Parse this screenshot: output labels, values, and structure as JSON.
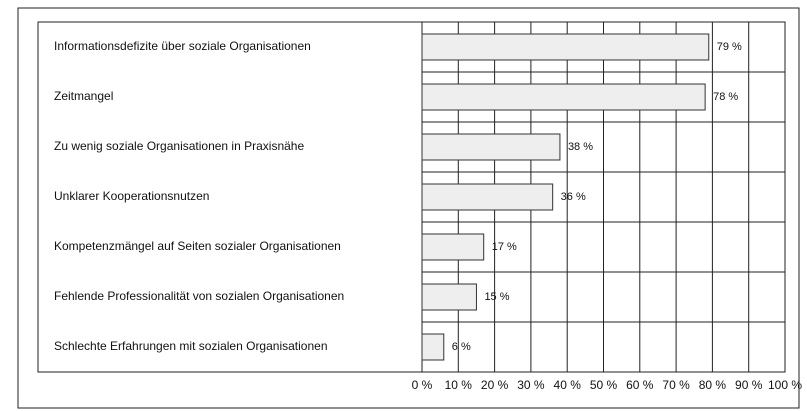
{
  "chart_data": {
    "type": "bar",
    "orientation": "horizontal",
    "categories": [
      "Informationsdefizite über soziale Organisationen",
      "Zeitmangel",
      "Zu wenig soziale Organisationen in Praxisnähe",
      "Unklarer Kooperationsnutzen",
      "Kompetenzmängel auf Seiten sozialer Organisationen",
      "Fehlende Professionalität von sozialen Organisationen",
      "Schlechte Erfahrungen mit sozialen Organisationen"
    ],
    "values": [
      79,
      78,
      38,
      36,
      17,
      15,
      6
    ],
    "value_labels": [
      "79 %",
      "78 %",
      "38 %",
      "36 %",
      "17 %",
      "15 %",
      "6 %"
    ],
    "color": "#eeeeee",
    "xlim": [
      0,
      100
    ],
    "xticks": [
      {
        "value": 0,
        "label": "0 %"
      },
      {
        "value": 10,
        "label": "10 %"
      },
      {
        "value": 20,
        "label": "20 %"
      },
      {
        "value": 30,
        "label": "30 %"
      },
      {
        "value": 40,
        "label": "40 %"
      },
      {
        "value": 50,
        "label": "50 %"
      },
      {
        "value": 60,
        "label": "60 %"
      },
      {
        "value": 70,
        "label": "70 %"
      },
      {
        "value": 80,
        "label": "80 %"
      },
      {
        "value": 90,
        "label": "90 %"
      },
      {
        "value": 100,
        "label": "100 %"
      }
    ],
    "grid": true
  }
}
